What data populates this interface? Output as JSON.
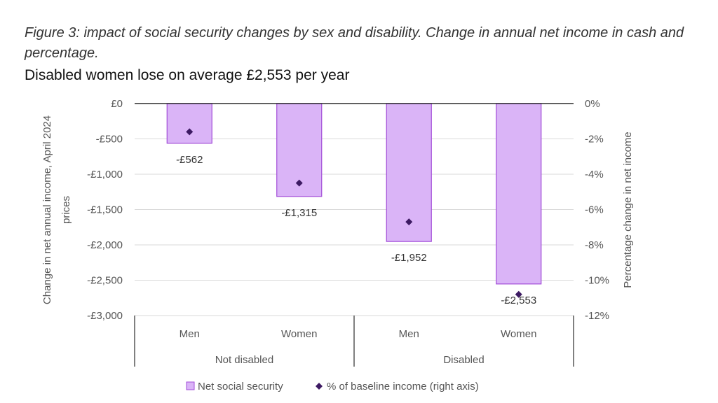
{
  "caption": "Figure 3: impact of social security changes by sex and disability. Change in annual net income in cash and percentage.",
  "colors": {
    "bar_fill": "#dab4f7",
    "bar_stroke": "#a24cd8",
    "marker": "#3d1a63",
    "grid": "#d9d9d9",
    "axis": "#000000"
  },
  "chart_data": {
    "type": "bar",
    "title": "Disabled women lose on average £2,553 per year",
    "categories": [
      {
        "label": "Men",
        "group": "Not disabled"
      },
      {
        "label": "Women",
        "group": "Not disabled"
      },
      {
        "label": "Men",
        "group": "Disabled"
      },
      {
        "label": "Women",
        "group": "Disabled"
      }
    ],
    "groups": [
      "Not disabled",
      "Disabled"
    ],
    "series": [
      {
        "name": "Net social security",
        "axis": "left",
        "values": [
          -562,
          -1315,
          -1952,
          -2553
        ],
        "data_labels": [
          "-£562",
          "-£1,315",
          "-£1,952",
          "-£2,553"
        ]
      },
      {
        "name": "% of baseline income (right axis)",
        "axis": "right",
        "type": "scatter",
        "values": [
          -1.6,
          -4.5,
          -6.7,
          -10.8
        ]
      }
    ],
    "ylabel": "Change in net annual income, April 2024 prices",
    "y2label": "Percentage change in net income",
    "ylim": [
      -3000,
      0
    ],
    "y2lim": [
      -12,
      0
    ],
    "yticks": [
      "£0",
      "-£500",
      "-£1,000",
      "-£1,500",
      "-£2,000",
      "-£2,500",
      "-£3,000"
    ],
    "y2ticks": [
      "0%",
      "-2%",
      "-4%",
      "-6%",
      "-8%",
      "-10%",
      "-12%"
    ],
    "grid": true,
    "legend_position": "bottom"
  }
}
